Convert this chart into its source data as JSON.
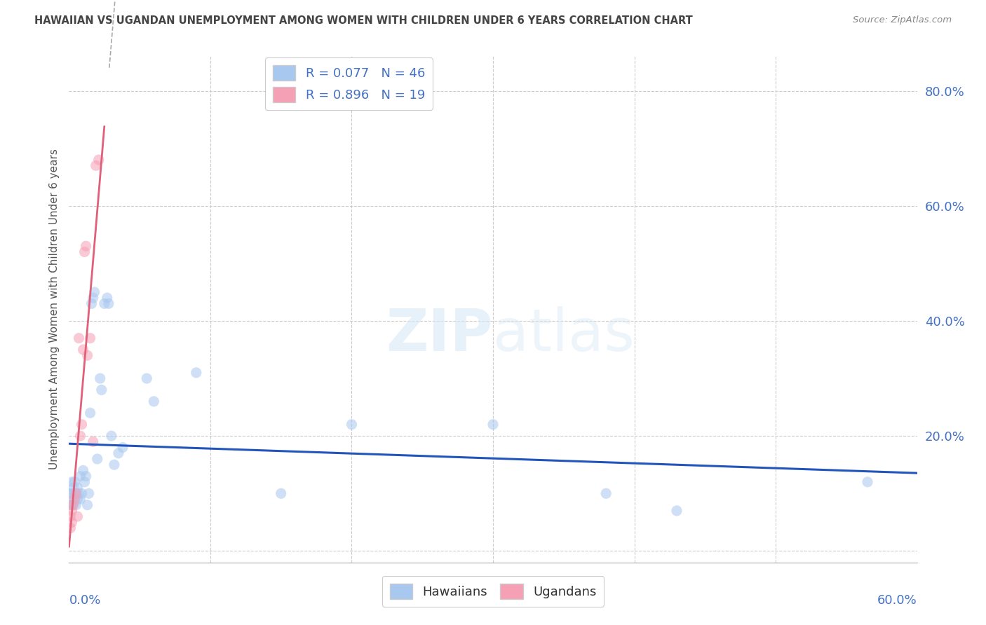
{
  "title": "HAWAIIAN VS UGANDAN UNEMPLOYMENT AMONG WOMEN WITH CHILDREN UNDER 6 YEARS CORRELATION CHART",
  "source": "Source: ZipAtlas.com",
  "ylabel": "Unemployment Among Women with Children Under 6 years",
  "xlim": [
    0.0,
    0.6
  ],
  "ylim": [
    -0.02,
    0.86
  ],
  "background_color": "#ffffff",
  "watermark_text": "ZIPatlas",
  "hawaiian_color": "#a8c8f0",
  "ugandan_color": "#f5a0b5",
  "hawaiian_line_color": "#2255bb",
  "ugandan_line_color": "#e0607a",
  "legend_R_hawaiian": "R = 0.077",
  "legend_N_hawaiian": "N = 46",
  "legend_R_ugandan": "R = 0.896",
  "legend_N_ugandan": "N = 19",
  "hawaiian_x": [
    0.001,
    0.001,
    0.002,
    0.002,
    0.002,
    0.003,
    0.003,
    0.003,
    0.004,
    0.004,
    0.005,
    0.005,
    0.006,
    0.006,
    0.007,
    0.008,
    0.008,
    0.009,
    0.01,
    0.011,
    0.012,
    0.013,
    0.014,
    0.015,
    0.016,
    0.017,
    0.018,
    0.02,
    0.022,
    0.023,
    0.025,
    0.027,
    0.028,
    0.03,
    0.032,
    0.035,
    0.038,
    0.055,
    0.06,
    0.09,
    0.15,
    0.2,
    0.3,
    0.38,
    0.43,
    0.565
  ],
  "hawaiian_y": [
    0.08,
    0.1,
    0.08,
    0.1,
    0.12,
    0.08,
    0.09,
    0.11,
    0.1,
    0.12,
    0.08,
    0.1,
    0.09,
    0.11,
    0.1,
    0.09,
    0.13,
    0.1,
    0.14,
    0.12,
    0.13,
    0.08,
    0.1,
    0.24,
    0.43,
    0.44,
    0.45,
    0.16,
    0.3,
    0.28,
    0.43,
    0.44,
    0.43,
    0.2,
    0.15,
    0.17,
    0.18,
    0.3,
    0.26,
    0.31,
    0.1,
    0.22,
    0.22,
    0.1,
    0.07,
    0.12
  ],
  "ugandan_x": [
    0.001,
    0.001,
    0.002,
    0.002,
    0.003,
    0.004,
    0.005,
    0.006,
    0.007,
    0.008,
    0.009,
    0.01,
    0.011,
    0.012,
    0.013,
    0.015,
    0.017,
    0.019,
    0.021
  ],
  "ugandan_y": [
    0.04,
    0.06,
    0.05,
    0.07,
    0.08,
    0.09,
    0.1,
    0.06,
    0.37,
    0.2,
    0.22,
    0.35,
    0.52,
    0.53,
    0.34,
    0.37,
    0.19,
    0.67,
    0.68
  ],
  "marker_size": 120,
  "marker_alpha": 0.55,
  "ytick_vals": [
    0.0,
    0.2,
    0.4,
    0.6,
    0.8
  ],
  "ytick_labels": [
    "",
    "20.0%",
    "40.0%",
    "60.0%",
    "80.0%"
  ],
  "xtick_grid_positions": [
    0.0,
    0.1,
    0.2,
    0.3,
    0.4,
    0.5,
    0.6
  ],
  "grid_color": "#cccccc",
  "tick_label_color": "#4472c4",
  "title_color": "#444444",
  "source_color": "#888888",
  "ylabel_color": "#555555"
}
